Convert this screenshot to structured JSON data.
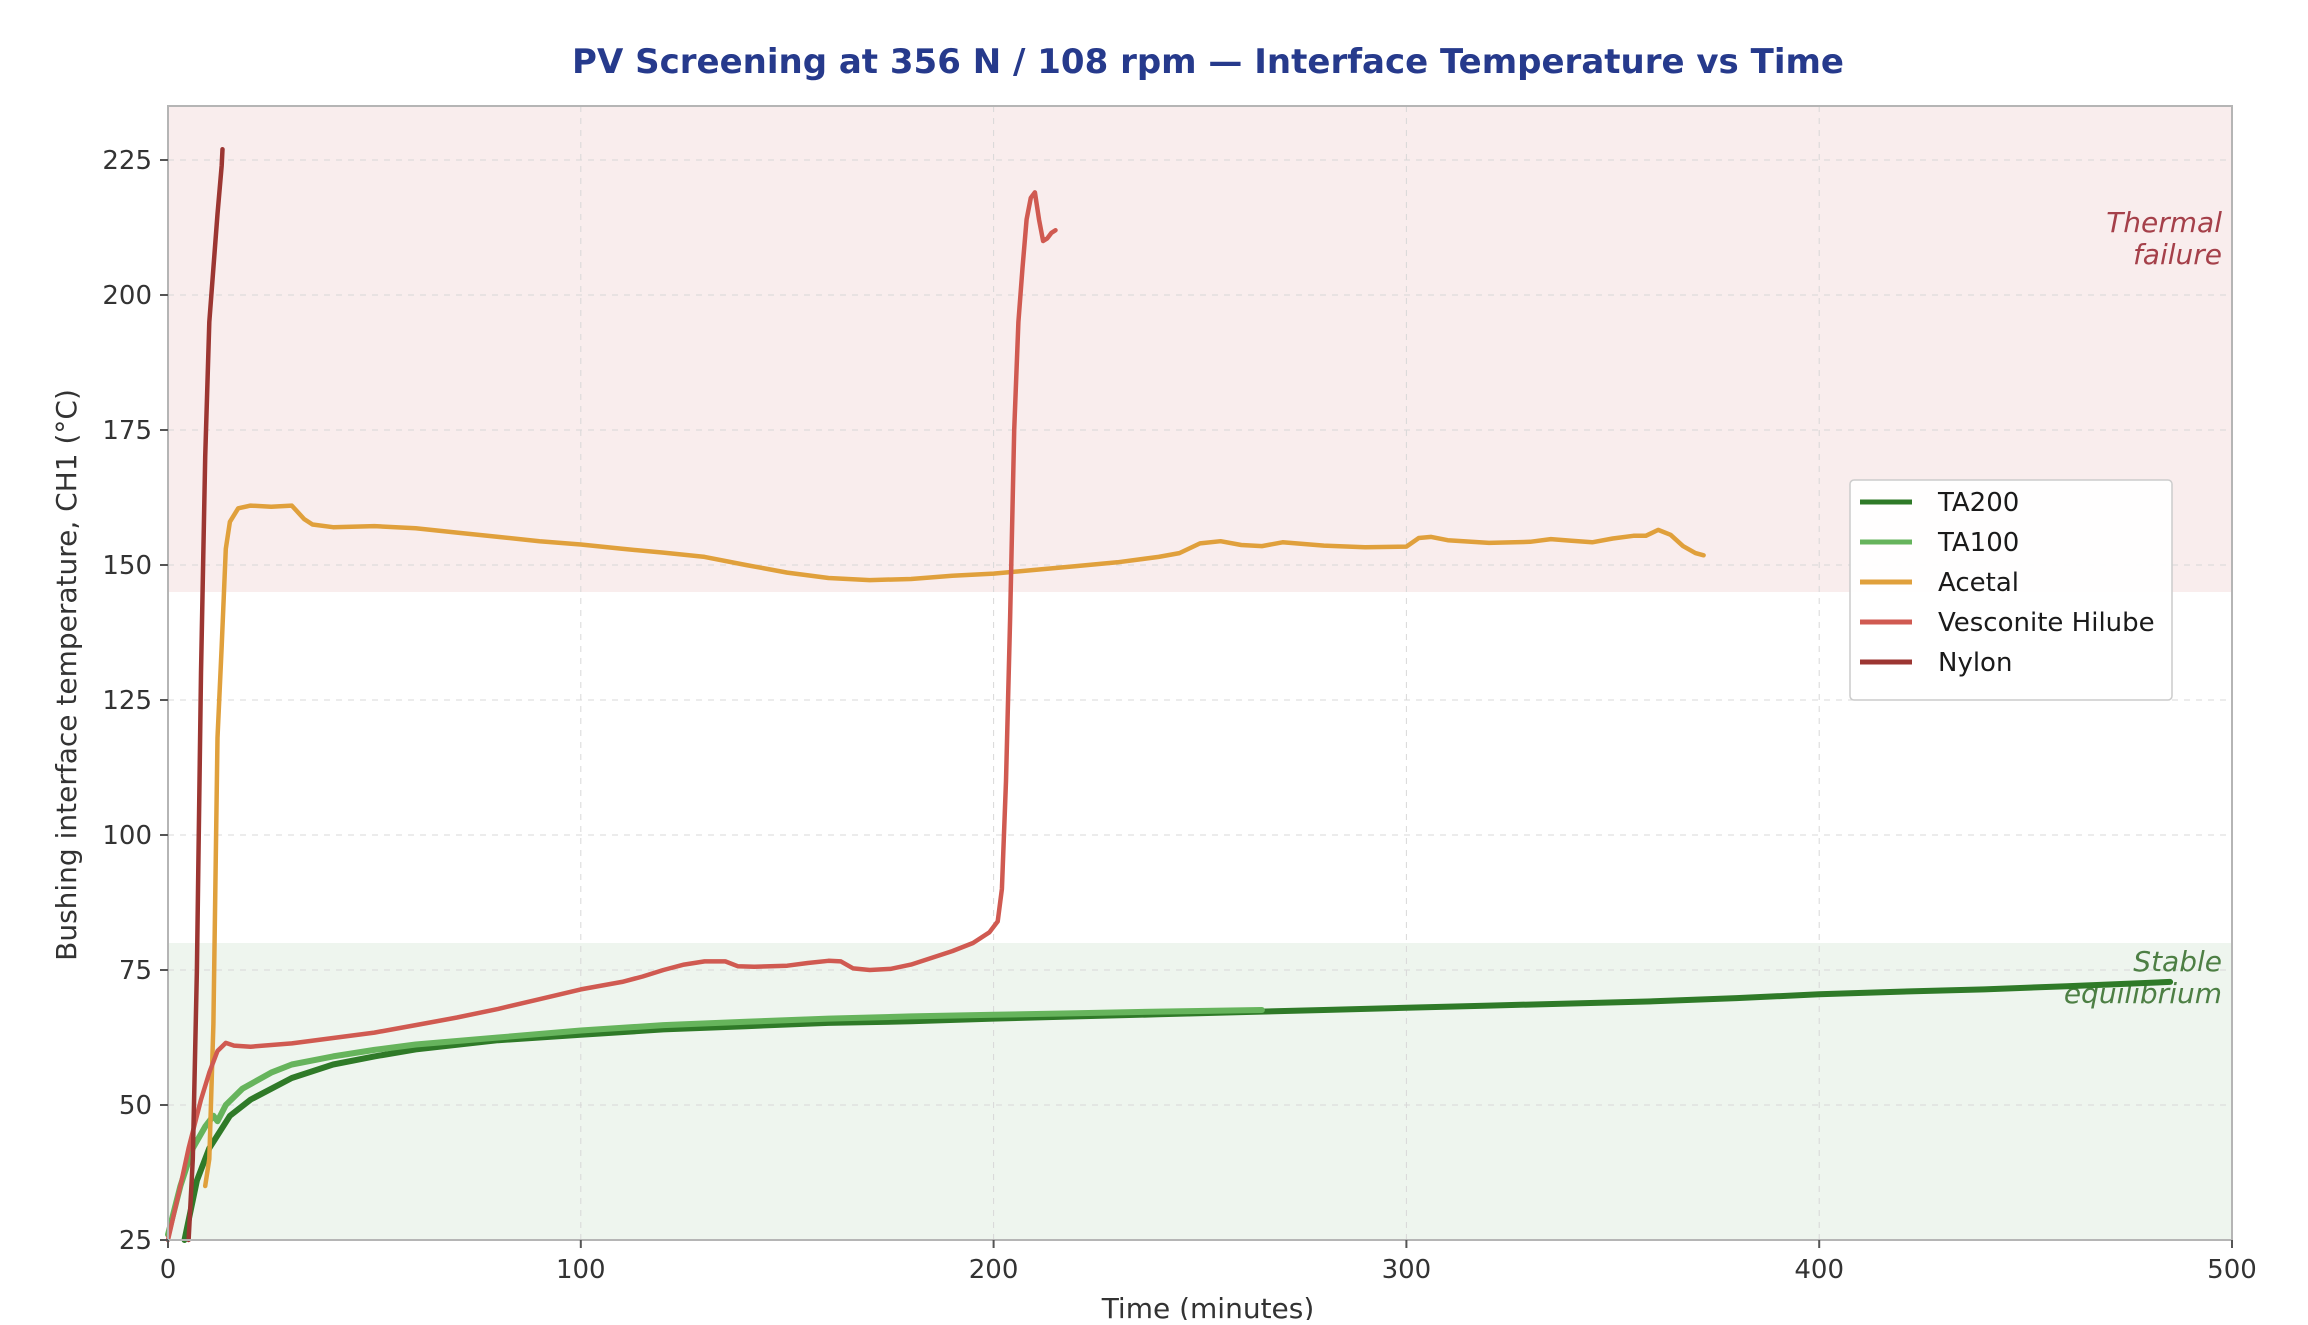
{
  "chart_data": {
    "type": "line",
    "title": "PV Screening at 356 N / 108 rpm — Interface Temperature vs Time",
    "xlabel": "Time (minutes)",
    "ylabel": "Bushing interface temperature, CH1 (°C)",
    "xlim": [
      0,
      500
    ],
    "ylim": [
      25,
      235
    ],
    "xticks": [
      0,
      100,
      200,
      300,
      400,
      500
    ],
    "yticks": [
      25,
      50,
      75,
      100,
      125,
      150,
      175,
      200,
      225
    ],
    "grid": true,
    "legend_position": "center-right",
    "zones": [
      {
        "name": "thermal",
        "label": [
          "Thermal",
          "failure"
        ],
        "y_range": [
          145,
          235
        ],
        "fill": "#f9eded",
        "text_color": "#a5404a"
      },
      {
        "name": "stable",
        "label": [
          "Stable",
          "equilibrium"
        ],
        "y_range": [
          25,
          80
        ],
        "fill": "#eef5ee",
        "text_color": "#4d7f44"
      }
    ],
    "series": [
      {
        "name": "TA200",
        "color": "#2f7a28",
        "points": [
          [
            4,
            25
          ],
          [
            7,
            36
          ],
          [
            10,
            42
          ],
          [
            15,
            48
          ],
          [
            20,
            51
          ],
          [
            30,
            55
          ],
          [
            40,
            57.5
          ],
          [
            50,
            59
          ],
          [
            60,
            60.3
          ],
          [
            80,
            62
          ],
          [
            100,
            63
          ],
          [
            120,
            64
          ],
          [
            140,
            64.6
          ],
          [
            160,
            65.2
          ],
          [
            180,
            65.5
          ],
          [
            200,
            66
          ],
          [
            220,
            66.4
          ],
          [
            240,
            66.8
          ],
          [
            260,
            67.2
          ],
          [
            280,
            67.6
          ],
          [
            300,
            68
          ],
          [
            320,
            68.4
          ],
          [
            340,
            68.8
          ],
          [
            360,
            69.2
          ],
          [
            380,
            69.8
          ],
          [
            400,
            70.5
          ],
          [
            420,
            71
          ],
          [
            440,
            71.4
          ],
          [
            460,
            72
          ],
          [
            485,
            72.8
          ]
        ]
      },
      {
        "name": "TA100",
        "color": "#66b45c",
        "points": [
          [
            0,
            26
          ],
          [
            3,
            35
          ],
          [
            6,
            42
          ],
          [
            9,
            46
          ],
          [
            11,
            48
          ],
          [
            12,
            47
          ],
          [
            14,
            50
          ],
          [
            18,
            53
          ],
          [
            25,
            56
          ],
          [
            30,
            57.5
          ],
          [
            40,
            59
          ],
          [
            50,
            60.2
          ],
          [
            60,
            61.2
          ],
          [
            80,
            62.5
          ],
          [
            100,
            63.8
          ],
          [
            120,
            64.8
          ],
          [
            140,
            65.4
          ],
          [
            160,
            66
          ],
          [
            180,
            66.4
          ],
          [
            200,
            66.7
          ],
          [
            220,
            67
          ],
          [
            240,
            67.3
          ],
          [
            265,
            67.6
          ]
        ]
      },
      {
        "name": "Acetal",
        "color": "#e0a03c",
        "points": [
          [
            9,
            35
          ],
          [
            10,
            40
          ],
          [
            11,
            65
          ],
          [
            12,
            118
          ],
          [
            13,
            135
          ],
          [
            14,
            153
          ],
          [
            15,
            158
          ],
          [
            17,
            160.5
          ],
          [
            20,
            161
          ],
          [
            25,
            160.8
          ],
          [
            30,
            161
          ],
          [
            33,
            158.5
          ],
          [
            35,
            157.5
          ],
          [
            40,
            157
          ],
          [
            50,
            157.2
          ],
          [
            60,
            156.8
          ],
          [
            70,
            156
          ],
          [
            80,
            155.2
          ],
          [
            90,
            154.4
          ],
          [
            100,
            153.8
          ],
          [
            110,
            153
          ],
          [
            120,
            152.3
          ],
          [
            130,
            151.5
          ],
          [
            140,
            150
          ],
          [
            150,
            148.6
          ],
          [
            160,
            147.6
          ],
          [
            170,
            147.2
          ],
          [
            180,
            147.4
          ],
          [
            190,
            148
          ],
          [
            200,
            148.4
          ],
          [
            210,
            149.1
          ],
          [
            220,
            149.8
          ],
          [
            230,
            150.5
          ],
          [
            240,
            151.5
          ],
          [
            245,
            152.2
          ],
          [
            250,
            154
          ],
          [
            255,
            154.4
          ],
          [
            260,
            153.7
          ],
          [
            265,
            153.5
          ],
          [
            270,
            154.2
          ],
          [
            280,
            153.6
          ],
          [
            290,
            153.3
          ],
          [
            300,
            153.4
          ],
          [
            303,
            155
          ],
          [
            306,
            155.2
          ],
          [
            310,
            154.6
          ],
          [
            320,
            154.1
          ],
          [
            330,
            154.3
          ],
          [
            335,
            154.8
          ],
          [
            340,
            154.5
          ],
          [
            345,
            154.2
          ],
          [
            350,
            154.9
          ],
          [
            355,
            155.4
          ],
          [
            358,
            155.4
          ],
          [
            361,
            156.5
          ],
          [
            364,
            155.6
          ],
          [
            367,
            153.5
          ],
          [
            370,
            152.2
          ],
          [
            372,
            151.8
          ]
        ]
      },
      {
        "name": "Vesconite Hilube",
        "color": "#d05a51",
        "points": [
          [
            0,
            25
          ],
          [
            3,
            35
          ],
          [
            5,
            42
          ],
          [
            8,
            51
          ],
          [
            10,
            56
          ],
          [
            12,
            60
          ],
          [
            14,
            61.5
          ],
          [
            16,
            61
          ],
          [
            20,
            60.8
          ],
          [
            30,
            61.4
          ],
          [
            40,
            62.4
          ],
          [
            50,
            63.4
          ],
          [
            60,
            64.8
          ],
          [
            70,
            66.2
          ],
          [
            80,
            67.8
          ],
          [
            90,
            69.6
          ],
          [
            100,
            71.4
          ],
          [
            110,
            72.8
          ],
          [
            115,
            73.8
          ],
          [
            120,
            75
          ],
          [
            125,
            76
          ],
          [
            130,
            76.6
          ],
          [
            135,
            76.6
          ],
          [
            138,
            75.7
          ],
          [
            142,
            75.6
          ],
          [
            150,
            75.8
          ],
          [
            155,
            76.3
          ],
          [
            160,
            76.7
          ],
          [
            163,
            76.6
          ],
          [
            166,
            75.3
          ],
          [
            170,
            75
          ],
          [
            175,
            75.2
          ],
          [
            180,
            76
          ],
          [
            190,
            78.5
          ],
          [
            195,
            80
          ],
          [
            199,
            82
          ],
          [
            201,
            84
          ],
          [
            202,
            90
          ],
          [
            203,
            110
          ],
          [
            204,
            140
          ],
          [
            205,
            175
          ],
          [
            206,
            195
          ],
          [
            207,
            205
          ],
          [
            208,
            214
          ],
          [
            209,
            218
          ],
          [
            210,
            219
          ],
          [
            211,
            214
          ],
          [
            212,
            210
          ],
          [
            213,
            210.5
          ],
          [
            214,
            211.5
          ],
          [
            215,
            212
          ]
        ]
      },
      {
        "name": "Nylon",
        "color": "#9c3632",
        "points": [
          [
            5,
            25
          ],
          [
            6,
            40
          ],
          [
            7,
            75
          ],
          [
            8,
            130
          ],
          [
            9,
            170
          ],
          [
            10,
            195
          ],
          [
            11,
            205
          ],
          [
            12,
            215
          ],
          [
            13,
            224
          ],
          [
            13.2,
            227
          ]
        ]
      }
    ]
  }
}
